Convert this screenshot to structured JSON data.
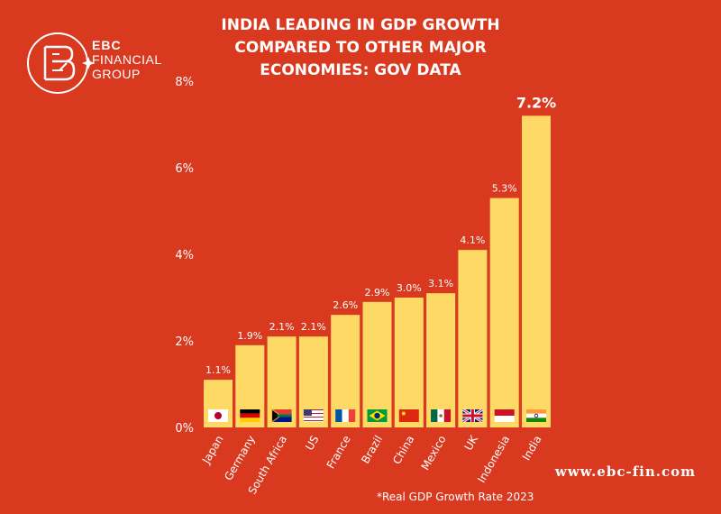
{
  "brand": {
    "name": "EBC",
    "line1": "FINANCIAL",
    "line2": "GROUP",
    "website": "www.ebc-fin.com",
    "colors": {
      "background": "#d9391f",
      "bar": "#ffd966",
      "text": "#ffffff"
    }
  },
  "footnote": "*Real GDP Growth Rate 2023",
  "chart_data": {
    "type": "bar",
    "title_lines": [
      "INDIA LEADING IN GDP GROWTH",
      "COMPARED TO OTHER MAJOR",
      "ECONOMIES: GOV DATA"
    ],
    "categories": [
      "Japan",
      "Germany",
      "South Africa",
      "US",
      "France",
      "Brazil",
      "China",
      "Mexico",
      "UK",
      "Indonesia",
      "India"
    ],
    "values": [
      1.1,
      1.9,
      2.1,
      2.1,
      2.6,
      2.9,
      3.0,
      3.1,
      4.1,
      5.3,
      7.2
    ],
    "value_labels": [
      "1.1%",
      "1.9%",
      "2.1%",
      "2.1%",
      "2.6%",
      "2.9%",
      "3.0%",
      "3.1%",
      "4.1%",
      "5.3%",
      "7.2%"
    ],
    "highlight_index": 10,
    "ylim": [
      0,
      8
    ],
    "yticks": [
      0,
      2,
      4,
      6,
      8
    ],
    "ytick_labels": [
      "0%",
      "2%",
      "4%",
      "6%",
      "8%"
    ],
    "xlabel": "",
    "ylabel": "",
    "grid": false,
    "flags": [
      "japan-flag-icon",
      "germany-flag-icon",
      "south-africa-flag-icon",
      "us-flag-icon",
      "france-flag-icon",
      "brazil-flag-icon",
      "china-flag-icon",
      "mexico-flag-icon",
      "uk-flag-icon",
      "indonesia-flag-icon",
      "india-flag-icon"
    ]
  }
}
